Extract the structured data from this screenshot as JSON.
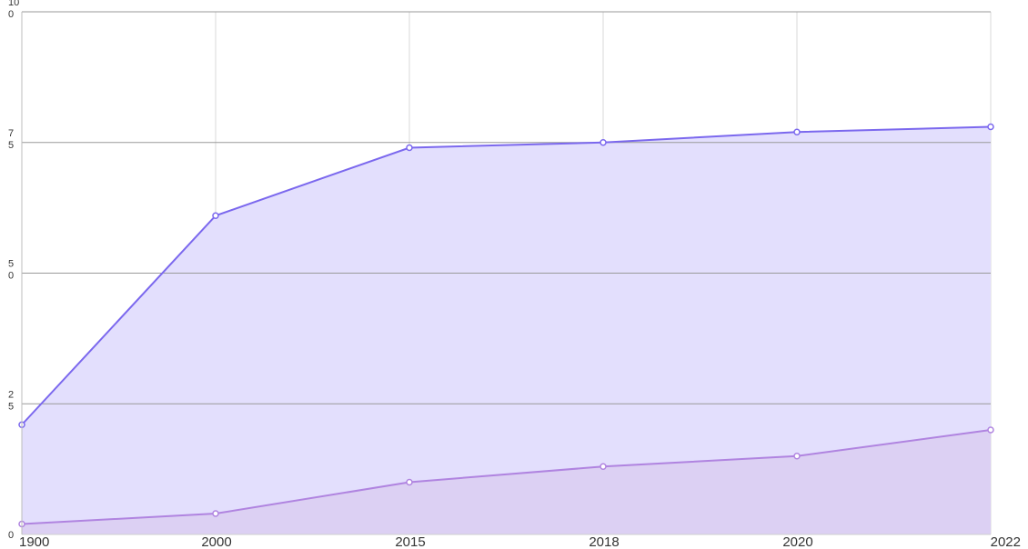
{
  "chart_data": {
    "type": "area",
    "categories": [
      "1900",
      "2000",
      "2015",
      "2018",
      "2020",
      "2022"
    ],
    "ylim": [
      0,
      100
    ],
    "yticks": [
      0,
      25,
      50,
      75,
      100
    ],
    "ytick_labels": [
      "0",
      "2\n5",
      "5\n0",
      "7\n5",
      "10\n0"
    ],
    "grid": true,
    "legend": "none",
    "series": [
      {
        "values": [
          21,
          61,
          74,
          75,
          77,
          78
        ],
        "color": "#7b68ee",
        "fill": "#e3dffd"
      },
      {
        "values": [
          2,
          4,
          10,
          13,
          15,
          20
        ],
        "color": "#b084e0",
        "fill": "#dcd0f3"
      }
    ]
  }
}
